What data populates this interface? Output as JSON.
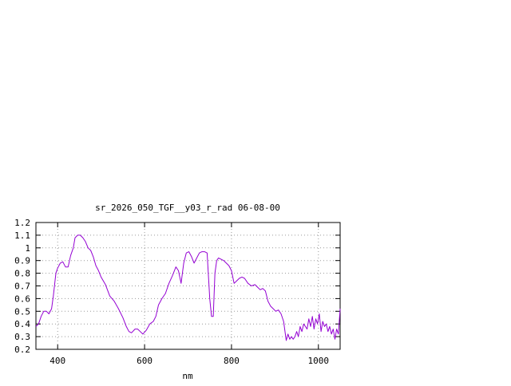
{
  "chart_data": {
    "type": "line",
    "title": "sr_2026_050_TGF__y03_r_rad 06-08-00",
    "xlabel": "nm",
    "ylabel": "",
    "xlim": [
      350,
      1050
    ],
    "ylim": [
      0.2,
      1.2
    ],
    "xticks": [
      400,
      600,
      800,
      1000
    ],
    "xtick_labels": [
      "400",
      "600",
      "800",
      "1000"
    ],
    "yticks": [
      0.2,
      0.3,
      0.4,
      0.5,
      0.6,
      0.7,
      0.8,
      0.9,
      1.0,
      1.1,
      1.2
    ],
    "ytick_labels": [
      "0.2",
      "0.3",
      "0.4",
      "0.5",
      "0.6",
      "0.7",
      "0.8",
      "0.9",
      "1",
      "1.1",
      "1.2"
    ],
    "grid": true,
    "legend": "none",
    "series": [
      {
        "color": "#9400d3",
        "x": [
          350,
          356,
          362,
          368,
          374,
          380,
          386,
          390,
          396,
          400,
          406,
          412,
          418,
          424,
          430,
          436,
          440,
          446,
          452,
          458,
          464,
          470,
          476,
          482,
          488,
          494,
          500,
          510,
          520,
          530,
          540,
          550,
          558,
          564,
          570,
          578,
          584,
          590,
          596,
          604,
          612,
          620,
          626,
          632,
          640,
          648,
          656,
          664,
          672,
          678,
          684,
          690,
          696,
          702,
          708,
          714,
          720,
          726,
          732,
          738,
          744,
          750,
          754,
          758,
          762,
          766,
          770,
          776,
          782,
          788,
          794,
          800,
          806,
          812,
          818,
          824,
          830,
          838,
          846,
          854,
          860,
          866,
          872,
          878,
          884,
          890,
          896,
          902,
          908,
          914,
          920,
          926,
          930,
          934,
          938,
          942,
          946,
          950,
          954,
          958,
          962,
          966,
          970,
          974,
          978,
          982,
          986,
          990,
          994,
          998,
          1002,
          1006,
          1010,
          1014,
          1018,
          1022,
          1026,
          1030,
          1034,
          1038,
          1042,
          1046,
          1050
        ],
        "y": [
          0.38,
          0.4,
          0.46,
          0.5,
          0.5,
          0.48,
          0.52,
          0.62,
          0.8,
          0.84,
          0.88,
          0.89,
          0.85,
          0.85,
          0.94,
          1.0,
          1.08,
          1.1,
          1.1,
          1.08,
          1.05,
          1.0,
          0.98,
          0.93,
          0.86,
          0.82,
          0.77,
          0.71,
          0.62,
          0.58,
          0.52,
          0.45,
          0.38,
          0.34,
          0.33,
          0.36,
          0.36,
          0.34,
          0.32,
          0.35,
          0.4,
          0.42,
          0.46,
          0.55,
          0.6,
          0.64,
          0.72,
          0.78,
          0.85,
          0.82,
          0.72,
          0.88,
          0.96,
          0.97,
          0.93,
          0.88,
          0.92,
          0.96,
          0.97,
          0.97,
          0.96,
          0.6,
          0.46,
          0.46,
          0.8,
          0.9,
          0.92,
          0.91,
          0.9,
          0.88,
          0.86,
          0.82,
          0.72,
          0.74,
          0.76,
          0.77,
          0.76,
          0.72,
          0.7,
          0.71,
          0.69,
          0.67,
          0.68,
          0.66,
          0.58,
          0.54,
          0.52,
          0.5,
          0.51,
          0.48,
          0.42,
          0.27,
          0.32,
          0.28,
          0.3,
          0.28,
          0.3,
          0.34,
          0.3,
          0.38,
          0.34,
          0.4,
          0.38,
          0.36,
          0.44,
          0.38,
          0.46,
          0.36,
          0.44,
          0.4,
          0.48,
          0.34,
          0.42,
          0.38,
          0.4,
          0.34,
          0.38,
          0.32,
          0.36,
          0.28,
          0.36,
          0.32,
          0.52
        ]
      }
    ]
  }
}
